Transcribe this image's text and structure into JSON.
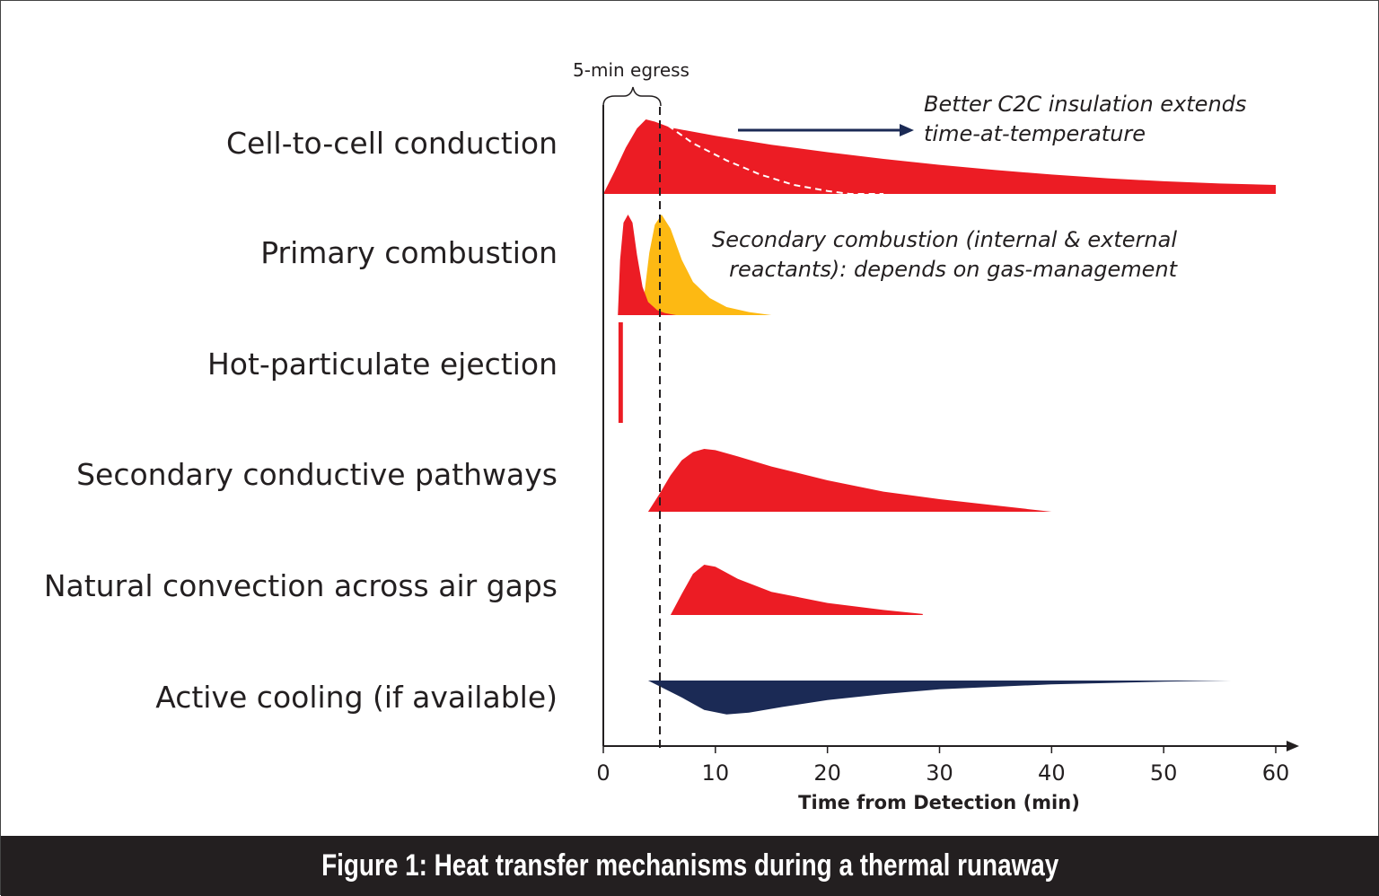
{
  "figure": {
    "caption": "Figure 1: Heat transfer mechanisms during a thermal runaway"
  },
  "chart_data": {
    "type": "area",
    "xlabel": "Time from Detection (min)",
    "xlim": [
      0,
      60
    ],
    "xticks": [
      0,
      10,
      20,
      30,
      40,
      50,
      60
    ],
    "grid": false,
    "legend": "none",
    "egress": {
      "label": "5-min egress",
      "x": 5
    },
    "colors": {
      "red": "#ec1c24",
      "yellow": "#fdb913",
      "navy": "#1b2a55",
      "text": "#231f20"
    },
    "rows": [
      {
        "label": "Cell-to-cell conduction",
        "shapes": [
          {
            "name": "Cell-to-cell conduction",
            "color": "red",
            "points": [
              [
                0,
                0
              ],
              [
                1,
                0.3
              ],
              [
                2,
                0.62
              ],
              [
                3,
                0.88
              ],
              [
                3.8,
                1.0
              ],
              [
                4.6,
                0.97
              ],
              [
                6,
                0.89
              ],
              [
                10,
                0.78
              ],
              [
                15,
                0.66
              ],
              [
                20,
                0.56
              ],
              [
                25,
                0.47
              ],
              [
                30,
                0.39
              ],
              [
                35,
                0.32
              ],
              [
                40,
                0.26
              ],
              [
                45,
                0.21
              ],
              [
                50,
                0.17
              ],
              [
                55,
                0.14
              ],
              [
                60,
                0.12
              ],
              [
                60,
                0
              ]
            ]
          }
        ],
        "dashed_curve": [
          [
            5,
            1.0
          ],
          [
            8,
            0.68
          ],
          [
            11,
            0.45
          ],
          [
            14,
            0.26
          ],
          [
            17,
            0.12
          ],
          [
            20,
            0.04
          ],
          [
            22,
            0.0
          ],
          [
            25,
            0.0
          ]
        ]
      },
      {
        "label": "Primary combustion",
        "shapes": [
          {
            "name": "Secondary combustion",
            "color": "yellow",
            "points": [
              [
                3.4,
                0
              ],
              [
                3.7,
                0.25
              ],
              [
                4.1,
                0.62
              ],
              [
                4.6,
                0.9
              ],
              [
                5.2,
                1.0
              ],
              [
                6.0,
                0.86
              ],
              [
                7.0,
                0.55
              ],
              [
                8.0,
                0.33
              ],
              [
                9.5,
                0.17
              ],
              [
                11,
                0.08
              ],
              [
                13,
                0.03
              ],
              [
                15,
                0.0
              ]
            ]
          },
          {
            "name": "Primary combustion",
            "color": "red",
            "points": [
              [
                1.3,
                0
              ],
              [
                1.5,
                0.55
              ],
              [
                1.8,
                0.92
              ],
              [
                2.2,
                1.0
              ],
              [
                2.6,
                0.92
              ],
              [
                3.0,
                0.6
              ],
              [
                3.5,
                0.28
              ],
              [
                4.0,
                0.13
              ],
              [
                4.8,
                0.05
              ],
              [
                5.5,
                0.02
              ],
              [
                6.5,
                0.0
              ]
            ]
          }
        ]
      },
      {
        "label": "Hot-particulate ejection",
        "shapes": [
          {
            "name": "Hot-particulate ejection",
            "color": "red",
            "points": [
              [
                1.35,
                0
              ],
              [
                1.35,
                1.0
              ],
              [
                1.75,
                1.0
              ],
              [
                1.75,
                0
              ]
            ]
          }
        ]
      },
      {
        "label": "Secondary conductive pathways",
        "shapes": [
          {
            "name": "Secondary conductive pathways",
            "color": "red",
            "points": [
              [
                4,
                0
              ],
              [
                5,
                0.28
              ],
              [
                6,
                0.58
              ],
              [
                7,
                0.82
              ],
              [
                8,
                0.95
              ],
              [
                9,
                1.0
              ],
              [
                10,
                0.98
              ],
              [
                12,
                0.88
              ],
              [
                15,
                0.72
              ],
              [
                20,
                0.5
              ],
              [
                25,
                0.32
              ],
              [
                30,
                0.2
              ],
              [
                35,
                0.1
              ],
              [
                40,
                0.0
              ]
            ]
          }
        ]
      },
      {
        "label": "Natural convection across air gaps",
        "shapes": [
          {
            "name": "Natural convection across air gaps",
            "color": "red",
            "points": [
              [
                6,
                0
              ],
              [
                7,
                0.42
              ],
              [
                8,
                0.82
              ],
              [
                9,
                1.0
              ],
              [
                10,
                0.96
              ],
              [
                12,
                0.72
              ],
              [
                15,
                0.46
              ],
              [
                20,
                0.24
              ],
              [
                25,
                0.1
              ],
              [
                28.5,
                0.02
              ]
            ]
          }
        ]
      },
      {
        "label": "Active cooling (if available)",
        "shapes": [
          {
            "name": "Active cooling",
            "color": "navy",
            "points": [
              [
                4,
                0
              ],
              [
                7,
                -0.45
              ],
              [
                9,
                -0.78
              ],
              [
                11,
                -0.9
              ],
              [
                13,
                -0.85
              ],
              [
                16,
                -0.7
              ],
              [
                20,
                -0.52
              ],
              [
                25,
                -0.36
              ],
              [
                30,
                -0.23
              ],
              [
                40,
                -0.1
              ],
              [
                50,
                -0.03
              ],
              [
                56,
                0.0
              ]
            ]
          }
        ]
      }
    ],
    "annotations": [
      {
        "lines": [
          "Better C2C insulation extends",
          "time-at-temperature"
        ],
        "arrow": true
      },
      {
        "lines": [
          "Secondary combustion (internal & external",
          "reactants): depends on gas-management"
        ]
      }
    ]
  }
}
